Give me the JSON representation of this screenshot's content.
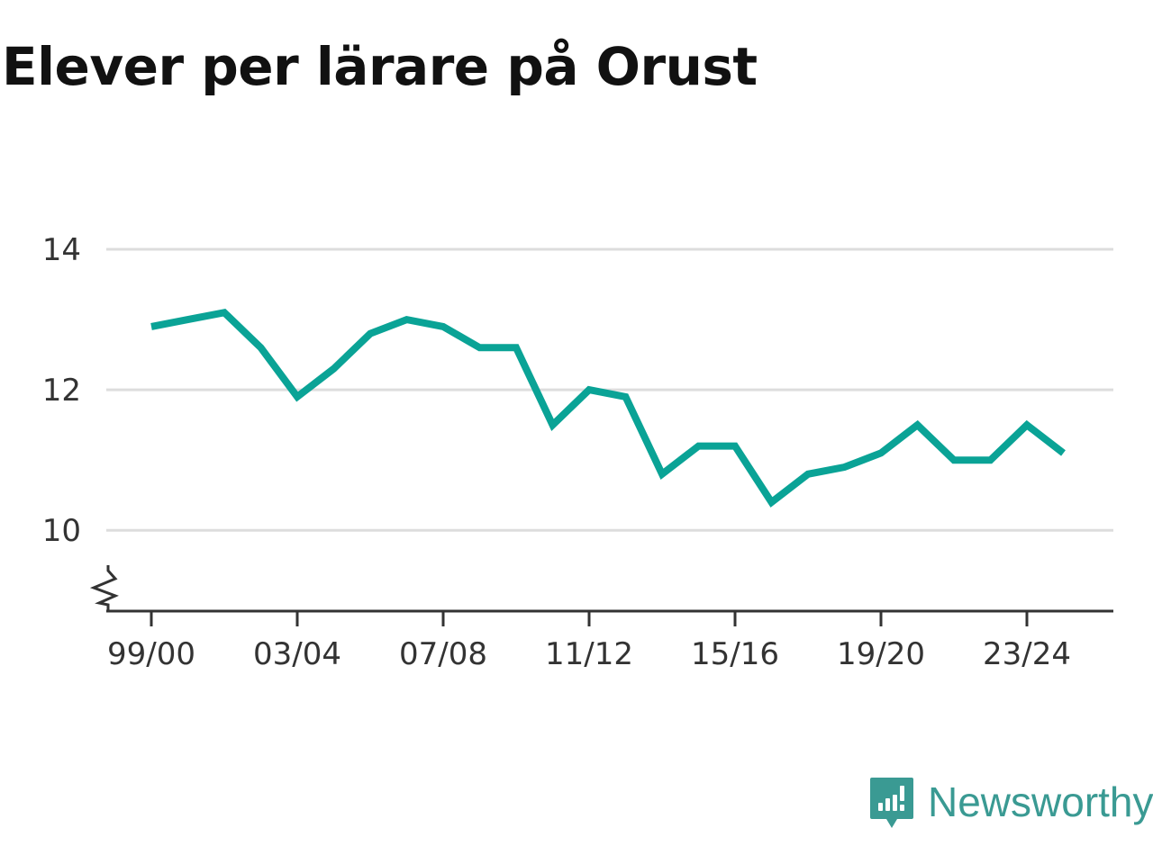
{
  "colors": {
    "line": "#0aa396",
    "grid": "#dddddd",
    "axis": "#333333",
    "brand": "#3a9a93"
  },
  "brand": {
    "name": "Newsworthy",
    "icon": "newsworthy-logo-icon"
  },
  "chart_data": {
    "type": "line",
    "title": "Elever per lärare på Orust",
    "xlabel": "",
    "ylabel": "",
    "ylim": [
      8.85,
      14.5
    ],
    "y_ticks": [
      10,
      12,
      14
    ],
    "y_tick_labels": [
      "10",
      "12",
      "14"
    ],
    "y_axis_break": true,
    "grid": "horizontal",
    "x": [
      "99/00",
      "00/01",
      "01/02",
      "02/03",
      "03/04",
      "04/05",
      "05/06",
      "06/07",
      "07/08",
      "08/09",
      "09/10",
      "10/11",
      "11/12",
      "12/13",
      "13/14",
      "14/15",
      "15/16",
      "16/17",
      "17/18",
      "18/19",
      "19/20",
      "20/21",
      "21/22",
      "22/23",
      "23/24",
      "24/25"
    ],
    "x_tick_labels": [
      "99/00",
      "03/04",
      "07/08",
      "11/12",
      "15/16",
      "19/20",
      "23/24"
    ],
    "series": [
      {
        "values": [
          12.9,
          13.0,
          13.1,
          12.6,
          11.9,
          12.3,
          12.8,
          13.0,
          12.9,
          12.6,
          12.6,
          11.5,
          12.0,
          11.9,
          10.8,
          11.2,
          11.2,
          10.4,
          10.8,
          10.9,
          11.1,
          11.5,
          11.0,
          11.0,
          11.5,
          11.1
        ]
      }
    ]
  }
}
